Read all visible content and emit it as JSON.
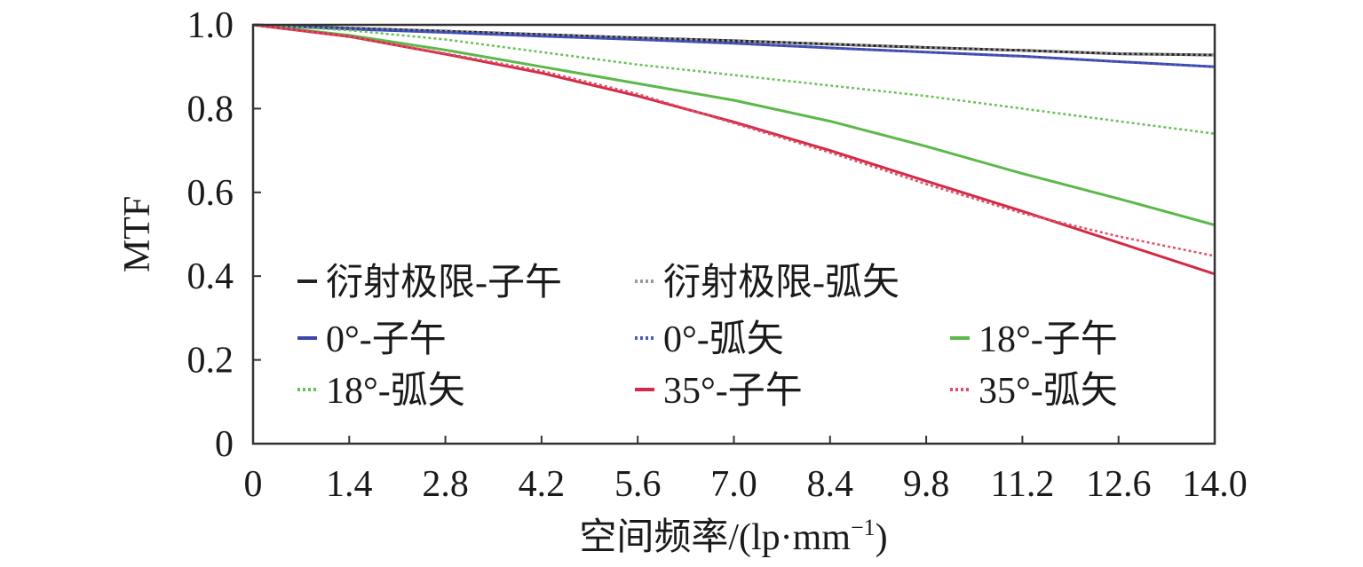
{
  "chart_data": {
    "type": "line",
    "xlabel": "空间频率/(lp·mm",
    "xlabel_sup": "−1",
    "xlabel_end": ")",
    "ylabel": "MTF",
    "xlim": [
      0,
      14.0
    ],
    "ylim": [
      0,
      1.0
    ],
    "xticks": [
      "0",
      "1.4",
      "2.8",
      "4.2",
      "5.6",
      "7.0",
      "8.4",
      "9.8",
      "11.2",
      "12.6",
      "14.0"
    ],
    "xtick_values": [
      0,
      1.4,
      2.8,
      4.2,
      5.6,
      7.0,
      8.4,
      9.8,
      11.2,
      12.6,
      14.0
    ],
    "yticks": [
      "0",
      "0.2",
      "0.4",
      "0.6",
      "0.8",
      "1.0"
    ],
    "ytick_values": [
      0,
      0.2,
      0.4,
      0.6,
      0.8,
      1.0
    ],
    "grid": false,
    "legend_position": "lower-left",
    "x": [
      0,
      1.4,
      2.8,
      4.2,
      5.6,
      7.0,
      8.4,
      9.8,
      11.2,
      12.6,
      14.0
    ],
    "series": [
      {
        "name": "衍射极限-子午",
        "color": "#222222",
        "dash": "solid",
        "values": [
          1.0,
          0.992,
          0.985,
          0.977,
          0.969,
          0.962,
          0.954,
          0.946,
          0.939,
          0.931,
          0.928
        ]
      },
      {
        "name": "衍射极限-弧矢",
        "color": "#999999",
        "dash": "dotted",
        "values": [
          1.0,
          0.992,
          0.985,
          0.977,
          0.969,
          0.962,
          0.954,
          0.946,
          0.939,
          0.931,
          0.928
        ]
      },
      {
        "name": "0°-子午",
        "color": "#3a47a8",
        "dash": "solid",
        "values": [
          1.0,
          0.99,
          0.982,
          0.973,
          0.965,
          0.956,
          0.945,
          0.935,
          0.925,
          0.912,
          0.9
        ]
      },
      {
        "name": "0°-弧矢",
        "color": "#4a58c2",
        "dash": "dotted",
        "values": [
          1.0,
          0.99,
          0.982,
          0.973,
          0.965,
          0.956,
          0.945,
          0.935,
          0.925,
          0.912,
          0.9
        ]
      },
      {
        "name": "18°-子午",
        "color": "#5cb84a",
        "dash": "solid",
        "values": [
          1.0,
          0.975,
          0.94,
          0.9,
          0.86,
          0.82,
          0.77,
          0.71,
          0.645,
          0.585,
          0.522
        ]
      },
      {
        "name": "18°-弧矢",
        "color": "#66c255",
        "dash": "dotted",
        "values": [
          1.0,
          0.987,
          0.965,
          0.935,
          0.905,
          0.88,
          0.855,
          0.83,
          0.8,
          0.77,
          0.74
        ]
      },
      {
        "name": "35°-子午",
        "color": "#d42a47",
        "dash": "solid",
        "values": [
          1.0,
          0.972,
          0.93,
          0.885,
          0.83,
          0.768,
          0.7,
          0.627,
          0.555,
          0.48,
          0.405
        ]
      },
      {
        "name": "35°-弧矢",
        "color": "#e05066",
        "dash": "dotted",
        "values": [
          1.0,
          0.972,
          0.932,
          0.89,
          0.835,
          0.765,
          0.695,
          0.62,
          0.55,
          0.495,
          0.448
        ]
      }
    ]
  }
}
